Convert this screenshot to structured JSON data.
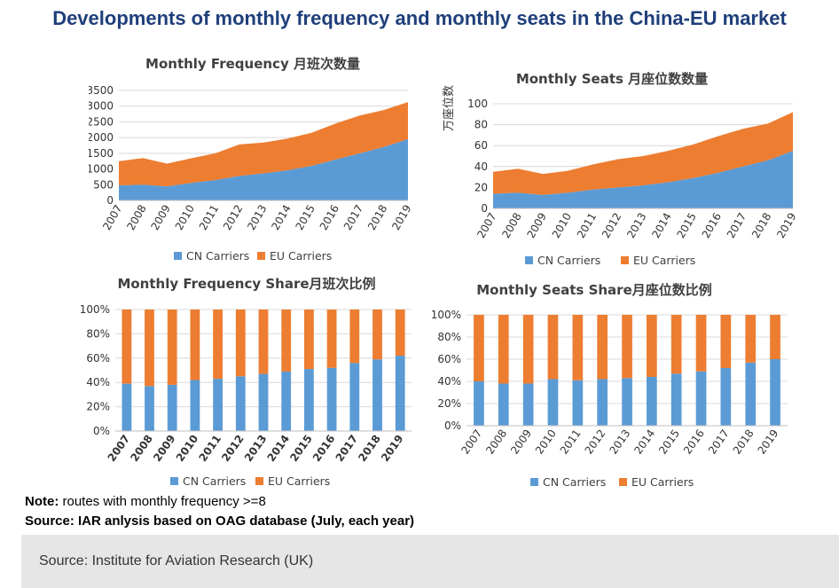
{
  "page": {
    "title": "Developments of monthly frequency and monthly seats in the China-EU market",
    "note_label": "Note:",
    "note_text": " routes with monthly frequency >=8",
    "source_text": "Source: IAR anlysis based on OAG database (July, each year)",
    "footer_text": "Source: Institute for Aviation Research (UK)"
  },
  "colors": {
    "cn": "#5b9bd5",
    "eu": "#ed7d31"
  },
  "chart_data": [
    {
      "type": "area",
      "stacked": true,
      "title": "Monthly Frequency 月班次数量",
      "ylabel": "",
      "categories": [
        "2007",
        "2008",
        "2009",
        "2010",
        "2011",
        "2012",
        "2013",
        "2014",
        "2015",
        "2016",
        "2017",
        "2018",
        "2019"
      ],
      "series": [
        {
          "name": "CN Carriers",
          "values": [
            480,
            500,
            450,
            560,
            650,
            780,
            860,
            960,
            1100,
            1300,
            1500,
            1700,
            1950
          ]
        },
        {
          "name": "EU Carriers",
          "values": [
            770,
            850,
            720,
            780,
            850,
            1000,
            980,
            1010,
            1050,
            1150,
            1200,
            1180,
            1180
          ]
        }
      ],
      "ylim": [
        0,
        3500
      ],
      "yticks": [
        "0",
        "500",
        "1000",
        "1500",
        "2000",
        "2500",
        "3000",
        "3500"
      ],
      "legend": "bottom",
      "grid": true
    },
    {
      "type": "area",
      "stacked": true,
      "title": "Monthly Seats 月座位数数量",
      "ylabel": "万座位数",
      "categories": [
        "2007",
        "2008",
        "2009",
        "2010",
        "2011",
        "2012",
        "2013",
        "2014",
        "2015",
        "2016",
        "2017",
        "2018",
        "2019"
      ],
      "series": [
        {
          "name": "CN Carriers",
          "values": [
            14,
            15,
            13,
            15,
            18,
            20,
            22,
            25,
            29,
            34,
            40,
            46,
            55
          ]
        },
        {
          "name": "EU Carriers",
          "values": [
            21,
            23,
            20,
            21,
            24,
            27,
            28,
            30,
            32,
            35,
            36,
            35,
            37
          ]
        }
      ],
      "ylim": [
        0,
        100
      ],
      "yticks": [
        "0",
        "20",
        "40",
        "60",
        "80",
        "100"
      ],
      "legend": "bottom",
      "grid": true
    },
    {
      "type": "bar",
      "stacked": true,
      "percent": true,
      "title": "Monthly Frequency Share月班次比例",
      "ylabel": "",
      "categories": [
        "2007",
        "2008",
        "2009",
        "2010",
        "2011",
        "2012",
        "2013",
        "2014",
        "2015",
        "2016",
        "2017",
        "2018",
        "2019"
      ],
      "series": [
        {
          "name": "CN Carriers",
          "values": [
            39,
            37,
            38,
            42,
            43,
            45,
            47,
            49,
            51,
            52,
            56,
            59,
            62
          ]
        },
        {
          "name": "EU Carriers",
          "values": [
            61,
            63,
            62,
            58,
            57,
            55,
            53,
            51,
            49,
            48,
            44,
            41,
            38
          ]
        }
      ],
      "ylim": [
        0,
        100
      ],
      "yticks": [
        "0%",
        "20%",
        "40%",
        "60%",
        "80%",
        "100%"
      ],
      "legend": "bottom",
      "grid": true
    },
    {
      "type": "bar",
      "stacked": true,
      "percent": true,
      "title": "Monthly Seats Share月座位数比例",
      "ylabel": "",
      "categories": [
        "2007",
        "2008",
        "2009",
        "2010",
        "2011",
        "2012",
        "2013",
        "2014",
        "2015",
        "2016",
        "2017",
        "2018",
        "2019"
      ],
      "series": [
        {
          "name": "CN Carriers",
          "values": [
            40,
            38,
            38,
            42,
            41,
            42,
            43,
            44,
            47,
            49,
            52,
            57,
            60
          ]
        },
        {
          "name": "EU Carriers",
          "values": [
            60,
            62,
            62,
            58,
            59,
            58,
            57,
            56,
            53,
            51,
            48,
            43,
            40
          ]
        }
      ],
      "ylim": [
        0,
        100
      ],
      "yticks": [
        "0%",
        "20%",
        "40%",
        "60%",
        "80%",
        "100%"
      ],
      "legend": "bottom",
      "grid": true
    }
  ]
}
